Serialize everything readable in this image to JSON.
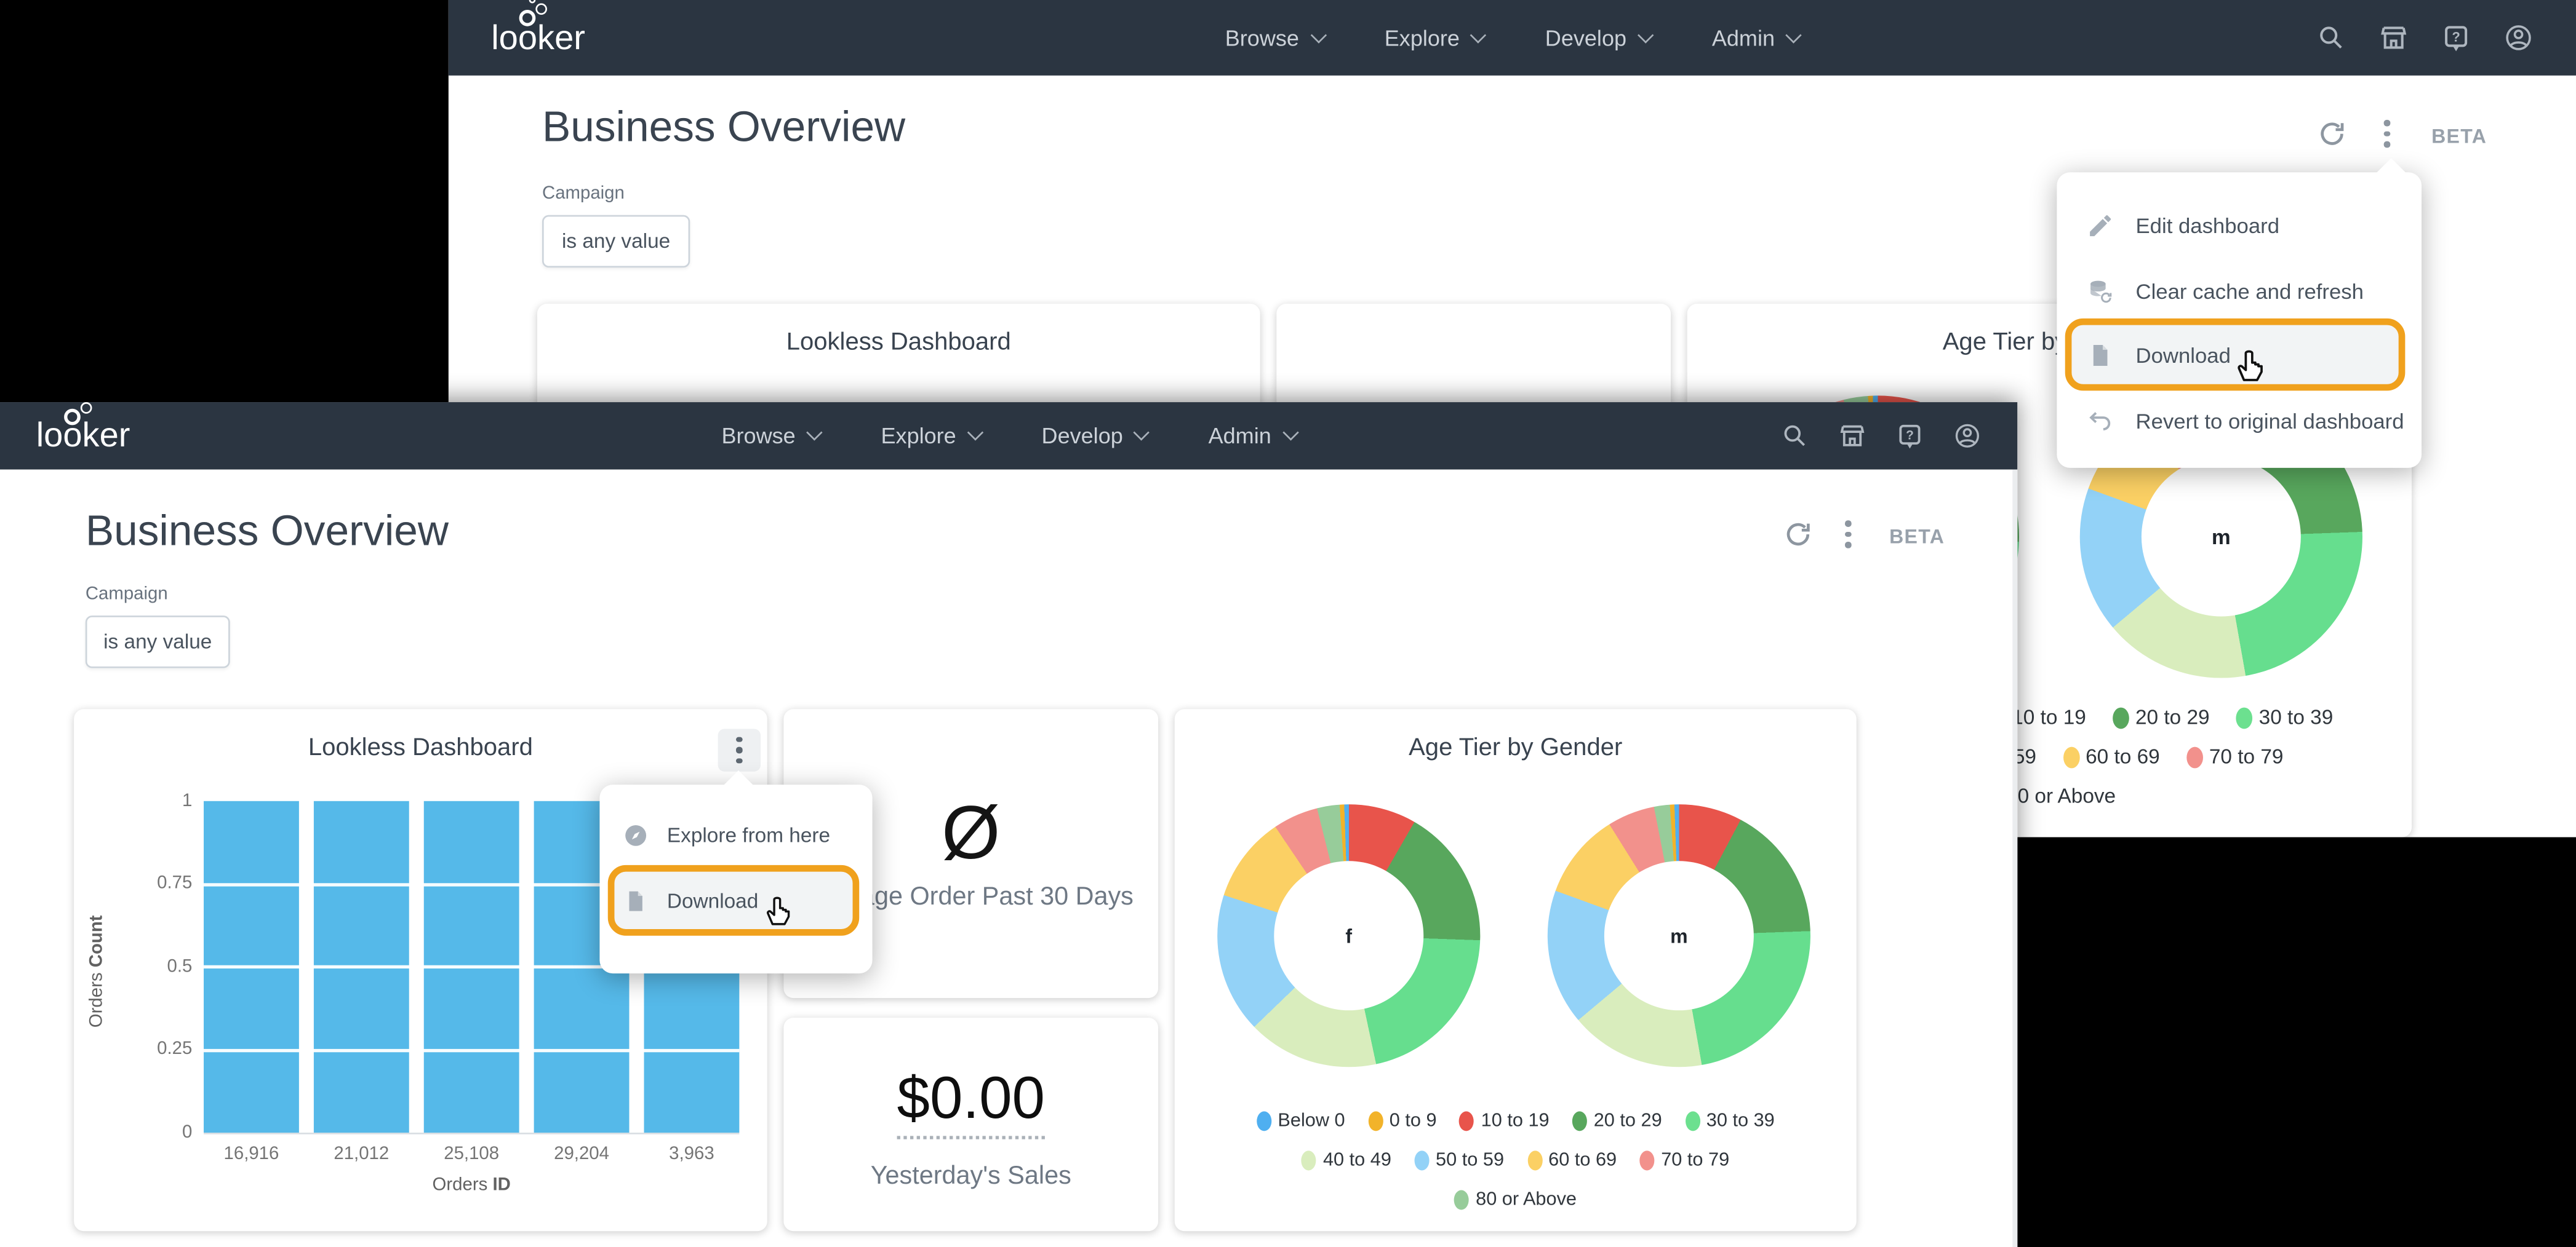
{
  "header": {
    "title": "Business Overview",
    "beta": "BETA",
    "filter_label": "Campaign",
    "filter_value": "is any value"
  },
  "nav": {
    "logo": "looker",
    "menus": [
      {
        "label": "Browse"
      },
      {
        "label": "Explore"
      },
      {
        "label": "Develop"
      },
      {
        "label": "Admin"
      }
    ],
    "icons": [
      "search",
      "marketplace",
      "help",
      "account"
    ]
  },
  "context_menu": {
    "items": [
      {
        "label": "Edit dashboard",
        "icon": "pencil-icon"
      },
      {
        "label": "Clear cache and refresh",
        "icon": "database-refresh-icon"
      },
      {
        "label": "Download",
        "icon": "document-icon",
        "highlighted": true
      },
      {
        "label": "Revert to original dashboard",
        "icon": "undo-icon"
      }
    ]
  },
  "tile_menu": {
    "items": [
      {
        "label": "Explore from here",
        "icon": "compass-icon"
      },
      {
        "label": "Download",
        "icon": "document-icon",
        "highlighted": true
      }
    ]
  },
  "tiles": {
    "lookless": {
      "title": "Lookless Dashboard"
    },
    "average": {
      "symbol": "Ø",
      "label": "Average Order Past 30 Days"
    },
    "sales": {
      "value": "$0.00",
      "label": "Yesterday's Sales"
    },
    "age": {
      "title": "Age Tier by Gender"
    }
  },
  "highlight_color": "#f0a11d",
  "chart_data": [
    {
      "type": "bar",
      "title": "Lookless Dashboard",
      "categories": [
        "16,916",
        "21,012",
        "25,108",
        "29,204",
        "3,963"
      ],
      "values": [
        1,
        1,
        1,
        1,
        1
      ],
      "ylim": [
        0,
        1
      ],
      "yticks": [
        "1",
        "0.75",
        "0.5",
        "0.25",
        "0"
      ],
      "ylabel": "Orders Count",
      "ylabel_parts": [
        "Orders",
        "Count"
      ],
      "xlabel": "Orders ID",
      "xlabel_parts": [
        "Orders",
        "ID"
      ],
      "bar_color": "#55b9e9",
      "grid": true
    },
    {
      "type": "donut",
      "title": "Age Tier by Gender",
      "donuts": [
        {
          "label": "f",
          "segments": [
            {
              "label": "10 to 19",
              "color": "#e8544b",
              "from": 0,
              "to": 30
            },
            {
              "label": "20 to 29",
              "color": "#58a75d",
              "from": 30,
              "to": 92
            },
            {
              "label": "30 to 39",
              "color": "#66de8e",
              "from": 92,
              "to": 168
            },
            {
              "label": "40 to 49",
              "color": "#d9edbd",
              "from": 168,
              "to": 226
            },
            {
              "label": "50 to 59",
              "color": "#93d2f7",
              "from": 226,
              "to": 288
            },
            {
              "label": "60 to 69",
              "color": "#fbd064",
              "from": 288,
              "to": 326
            },
            {
              "label": "70 to 79",
              "color": "#f2918c",
              "from": 326,
              "to": 346
            },
            {
              "label": "80 or Above",
              "color": "#97cc9a",
              "from": 346,
              "to": 356
            },
            {
              "label": "0 to 9",
              "color": "#f2b32a",
              "from": 356,
              "to": 358
            },
            {
              "label": "Below 0",
              "color": "#4faff0",
              "from": 358,
              "to": 360
            }
          ]
        },
        {
          "label": "m",
          "segments": [
            {
              "label": "10 to 19",
              "color": "#e8544b",
              "from": 0,
              "to": 28
            },
            {
              "label": "20 to 29",
              "color": "#58a75d",
              "from": 28,
              "to": 88
            },
            {
              "label": "30 to 39",
              "color": "#66de8e",
              "from": 88,
              "to": 170
            },
            {
              "label": "40 to 49",
              "color": "#d9edbd",
              "from": 170,
              "to": 230
            },
            {
              "label": "50 to 59",
              "color": "#93d2f7",
              "from": 230,
              "to": 290
            },
            {
              "label": "60 to 69",
              "color": "#fbd064",
              "from": 290,
              "to": 328
            },
            {
              "label": "70 to 79",
              "color": "#f2918c",
              "from": 328,
              "to": 349
            },
            {
              "label": "80 or Above",
              "color": "#97cc9a",
              "from": 349,
              "to": 356
            },
            {
              "label": "0 to 9",
              "color": "#f2b32a",
              "from": 356,
              "to": 358
            },
            {
              "label": "Below 0",
              "color": "#4faff0",
              "from": 358,
              "to": 360
            }
          ]
        }
      ],
      "legend": [
        {
          "items": [
            {
              "label": "Below 0",
              "color": "#4faff0"
            },
            {
              "label": "0 to 9",
              "color": "#f2b32a"
            },
            {
              "label": "10 to 19",
              "color": "#e8544b"
            },
            {
              "label": "20 to 29",
              "color": "#58a75d"
            },
            {
              "label": "30 to 39",
              "color": "#6ce08f"
            }
          ]
        },
        {
          "items": [
            {
              "label": "40 to 49",
              "color": "#d9edbd"
            },
            {
              "label": "50 to 59",
              "color": "#93d2f7"
            },
            {
              "label": "60 to 69",
              "color": "#fbd064"
            },
            {
              "label": "70 to 79",
              "color": "#f2918c"
            }
          ]
        },
        {
          "items": [
            {
              "label": "80 or Above",
              "color": "#97cc9a"
            }
          ]
        }
      ],
      "legend_position": "bottom"
    }
  ]
}
